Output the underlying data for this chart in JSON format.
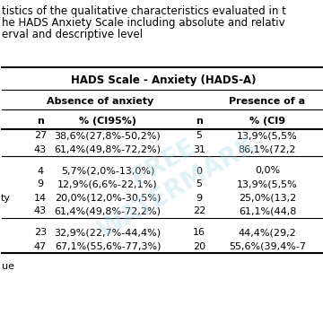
{
  "title_lines": [
    "tistics of the qualitative characteristics evaluated in t",
    "he HADS Anxiety Scale including absolute and relativ",
    "erval and descriptive level"
  ],
  "header1": "HADS Scale - Anxiety (HADS-A)",
  "header2_left": "Absence of anxiety",
  "header2_right": "Presence of a",
  "col_n1": "n",
  "col_pct1": "% (CI95%)",
  "col_n2": "n",
  "col_pct2": "% (CI9",
  "rows": [
    {
      "ll": "",
      "n1": "27",
      "pct1": "38,6%(27,8%-50,2%)",
      "n2": "5",
      "pct2": "13,9%(5,5%",
      "spacer_before": true
    },
    {
      "ll": "",
      "n1": "43",
      "pct1": "61,4%(49,8%-72,2%)",
      "n2": "31",
      "pct2": "86,1%(72,2",
      "spacer_before": false
    },
    {
      "ll": "",
      "n1": "4",
      "pct1": "5,7%(2,0%-13,0%)",
      "n2": "0",
      "pct2": "0,0%",
      "spacer_before": true
    },
    {
      "ll": "",
      "n1": "9",
      "pct1": "12,9%(6,6%-22,1%)",
      "n2": "5",
      "pct2": "13,9%(5,5%",
      "spacer_before": false
    },
    {
      "ll": "ty",
      "n1": "14",
      "pct1": "20,0%(12,0%-30,5%)",
      "n2": "9",
      "pct2": "25,0%(13,2",
      "spacer_before": false
    },
    {
      "ll": "",
      "n1": "43",
      "pct1": "61,4%(49,8%-72,2%)",
      "n2": "22",
      "pct2": "61,1%(44,8",
      "spacer_before": false
    },
    {
      "ll": "",
      "n1": "23",
      "pct1": "32,9%(22,7%-44,4%)",
      "n2": "16",
      "pct2": "44,4%(29,2",
      "spacer_before": true
    },
    {
      "ll": "",
      "n1": "47",
      "pct1": "67,1%(55,6%-77,3%)",
      "n2": "20",
      "pct2": "55,6%(39,4%-7",
      "spacer_before": false
    }
  ],
  "footer": "ue",
  "bg_color": "#ffffff",
  "text_color": "#000000",
  "line_color": "#000000",
  "watermark_color": "#add8e6"
}
